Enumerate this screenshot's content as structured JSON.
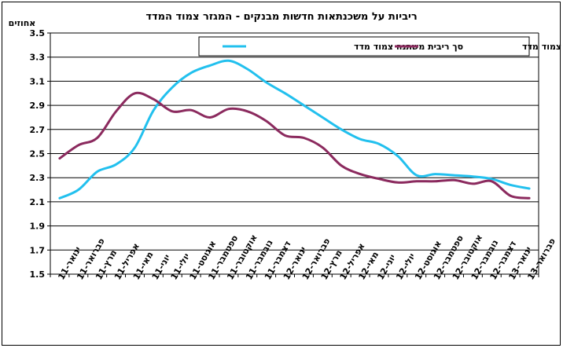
{
  "chart_data": {
    "type": "line",
    "title": "ריביות על משכנתאות חדשות מבנקים - המגזר צמוד המדד",
    "ylabel": "אחוזים",
    "ylim": [
      1.5,
      3.5
    ],
    "yticks": [
      "3.5",
      "3.3",
      "3.1",
      "2.9",
      "2.7",
      "2.5",
      "2.3",
      "2.1",
      "1.9",
      "1.7",
      "1.5"
    ],
    "grid": true,
    "legend_position": "top-right",
    "categories": [
      "ינואר-11",
      "פברואר-11",
      "מרץ-11",
      "אפריל-11",
      "מאי-11",
      "יוני-11",
      "יולי-11",
      "אוגוסט-11",
      "ספטמבר-11",
      "אוקטובר-11",
      "נובמבר-11",
      "דצמבר-11",
      "ינואר-12",
      "פברואר-12",
      "מרץ-12",
      "אפריל-12",
      "מאי-12",
      "יוני-12",
      "יולי-12",
      "אוגוסט-12",
      "ספטמבר-12",
      "אוקטובר-12",
      "נובמבר-12",
      "דצמבר-12",
      "ינואר-13",
      "פברואר-13"
    ],
    "series": [
      {
        "name": "סך ריבית משתנה צמוד מדד",
        "color": "#22c0ee",
        "values": [
          2.13,
          2.2,
          2.35,
          2.41,
          2.55,
          2.86,
          3.05,
          3.17,
          3.23,
          3.27,
          3.2,
          3.09,
          3.0,
          2.9,
          2.8,
          2.7,
          2.62,
          2.58,
          2.48,
          2.32,
          2.33,
          2.32,
          2.31,
          2.29,
          2.24,
          2.21
        ]
      },
      {
        "name": "ריבית קבועה צמוד מדד",
        "color": "#8b2a5e",
        "values": [
          2.46,
          2.57,
          2.63,
          2.85,
          3.0,
          2.95,
          2.85,
          2.86,
          2.8,
          2.87,
          2.85,
          2.77,
          2.65,
          2.63,
          2.55,
          2.4,
          2.33,
          2.29,
          2.26,
          2.27,
          2.27,
          2.28,
          2.25,
          2.27,
          2.15,
          2.13
        ]
      }
    ]
  }
}
